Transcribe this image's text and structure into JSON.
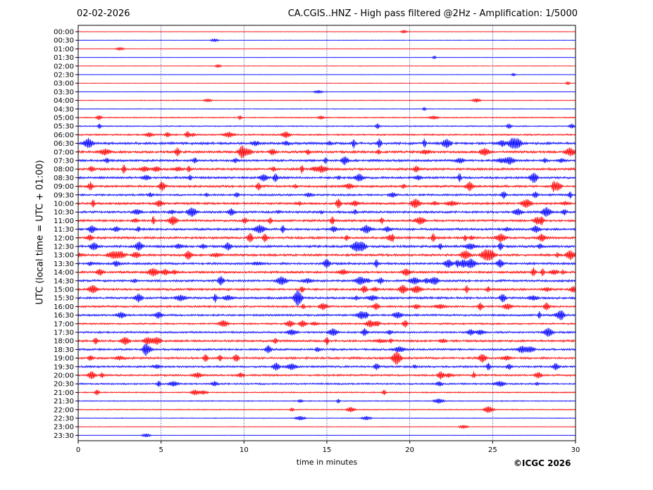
{
  "header": {
    "date": "02-02-2026",
    "title": "CA.CGIS..HNZ - High pass filtered @2Hz - Amplification: 1/5000"
  },
  "footer": {
    "copyright": "©ICGC 2026"
  },
  "colors": {
    "even_trace": "#ff0000",
    "odd_trace": "#0000ff",
    "grid": "#000080",
    "frame": "#000000"
  },
  "chart_data": {
    "type": "line",
    "xlabel": "time in minutes",
    "ylabel": "UTC (local time = UTC + 01:00)",
    "xlim": [
      0,
      30
    ],
    "x_ticks": [
      "0",
      "5",
      "10",
      "15",
      "20",
      "25",
      "30"
    ],
    "vertical_grid_at": [
      5,
      10,
      15,
      20,
      25
    ],
    "row_labels": [
      "00:00",
      "00:30",
      "01:00",
      "01:30",
      "02:00",
      "02:30",
      "03:00",
      "03:30",
      "04:00",
      "04:30",
      "05:00",
      "05:30",
      "06:00",
      "06:30",
      "07:00",
      "07:30",
      "08:00",
      "08:30",
      "09:00",
      "09:30",
      "10:00",
      "10:30",
      "11:00",
      "11:30",
      "12:00",
      "12:30",
      "13:00",
      "13:30",
      "14:00",
      "14:30",
      "15:00",
      "15:30",
      "16:00",
      "16:30",
      "17:00",
      "17:30",
      "18:00",
      "18:30",
      "19:00",
      "19:30",
      "20:00",
      "20:30",
      "21:00",
      "21:30",
      "22:00",
      "22:30",
      "23:00",
      "23:30"
    ],
    "trace_colors": [
      "red",
      "blue"
    ],
    "relative_activity": [
      0.05,
      0.08,
      0.05,
      0.05,
      0.05,
      0.05,
      0.05,
      0.06,
      0.12,
      0.1,
      0.25,
      0.3,
      0.45,
      0.8,
      0.75,
      0.7,
      0.75,
      0.7,
      0.7,
      0.6,
      0.7,
      0.7,
      0.7,
      0.7,
      0.75,
      0.75,
      0.75,
      0.7,
      0.7,
      0.7,
      0.7,
      0.7,
      0.6,
      0.6,
      0.5,
      0.55,
      0.65,
      0.6,
      0.65,
      0.6,
      0.55,
      0.45,
      0.3,
      0.2,
      0.25,
      0.15,
      0.08,
      0.08
    ]
  }
}
